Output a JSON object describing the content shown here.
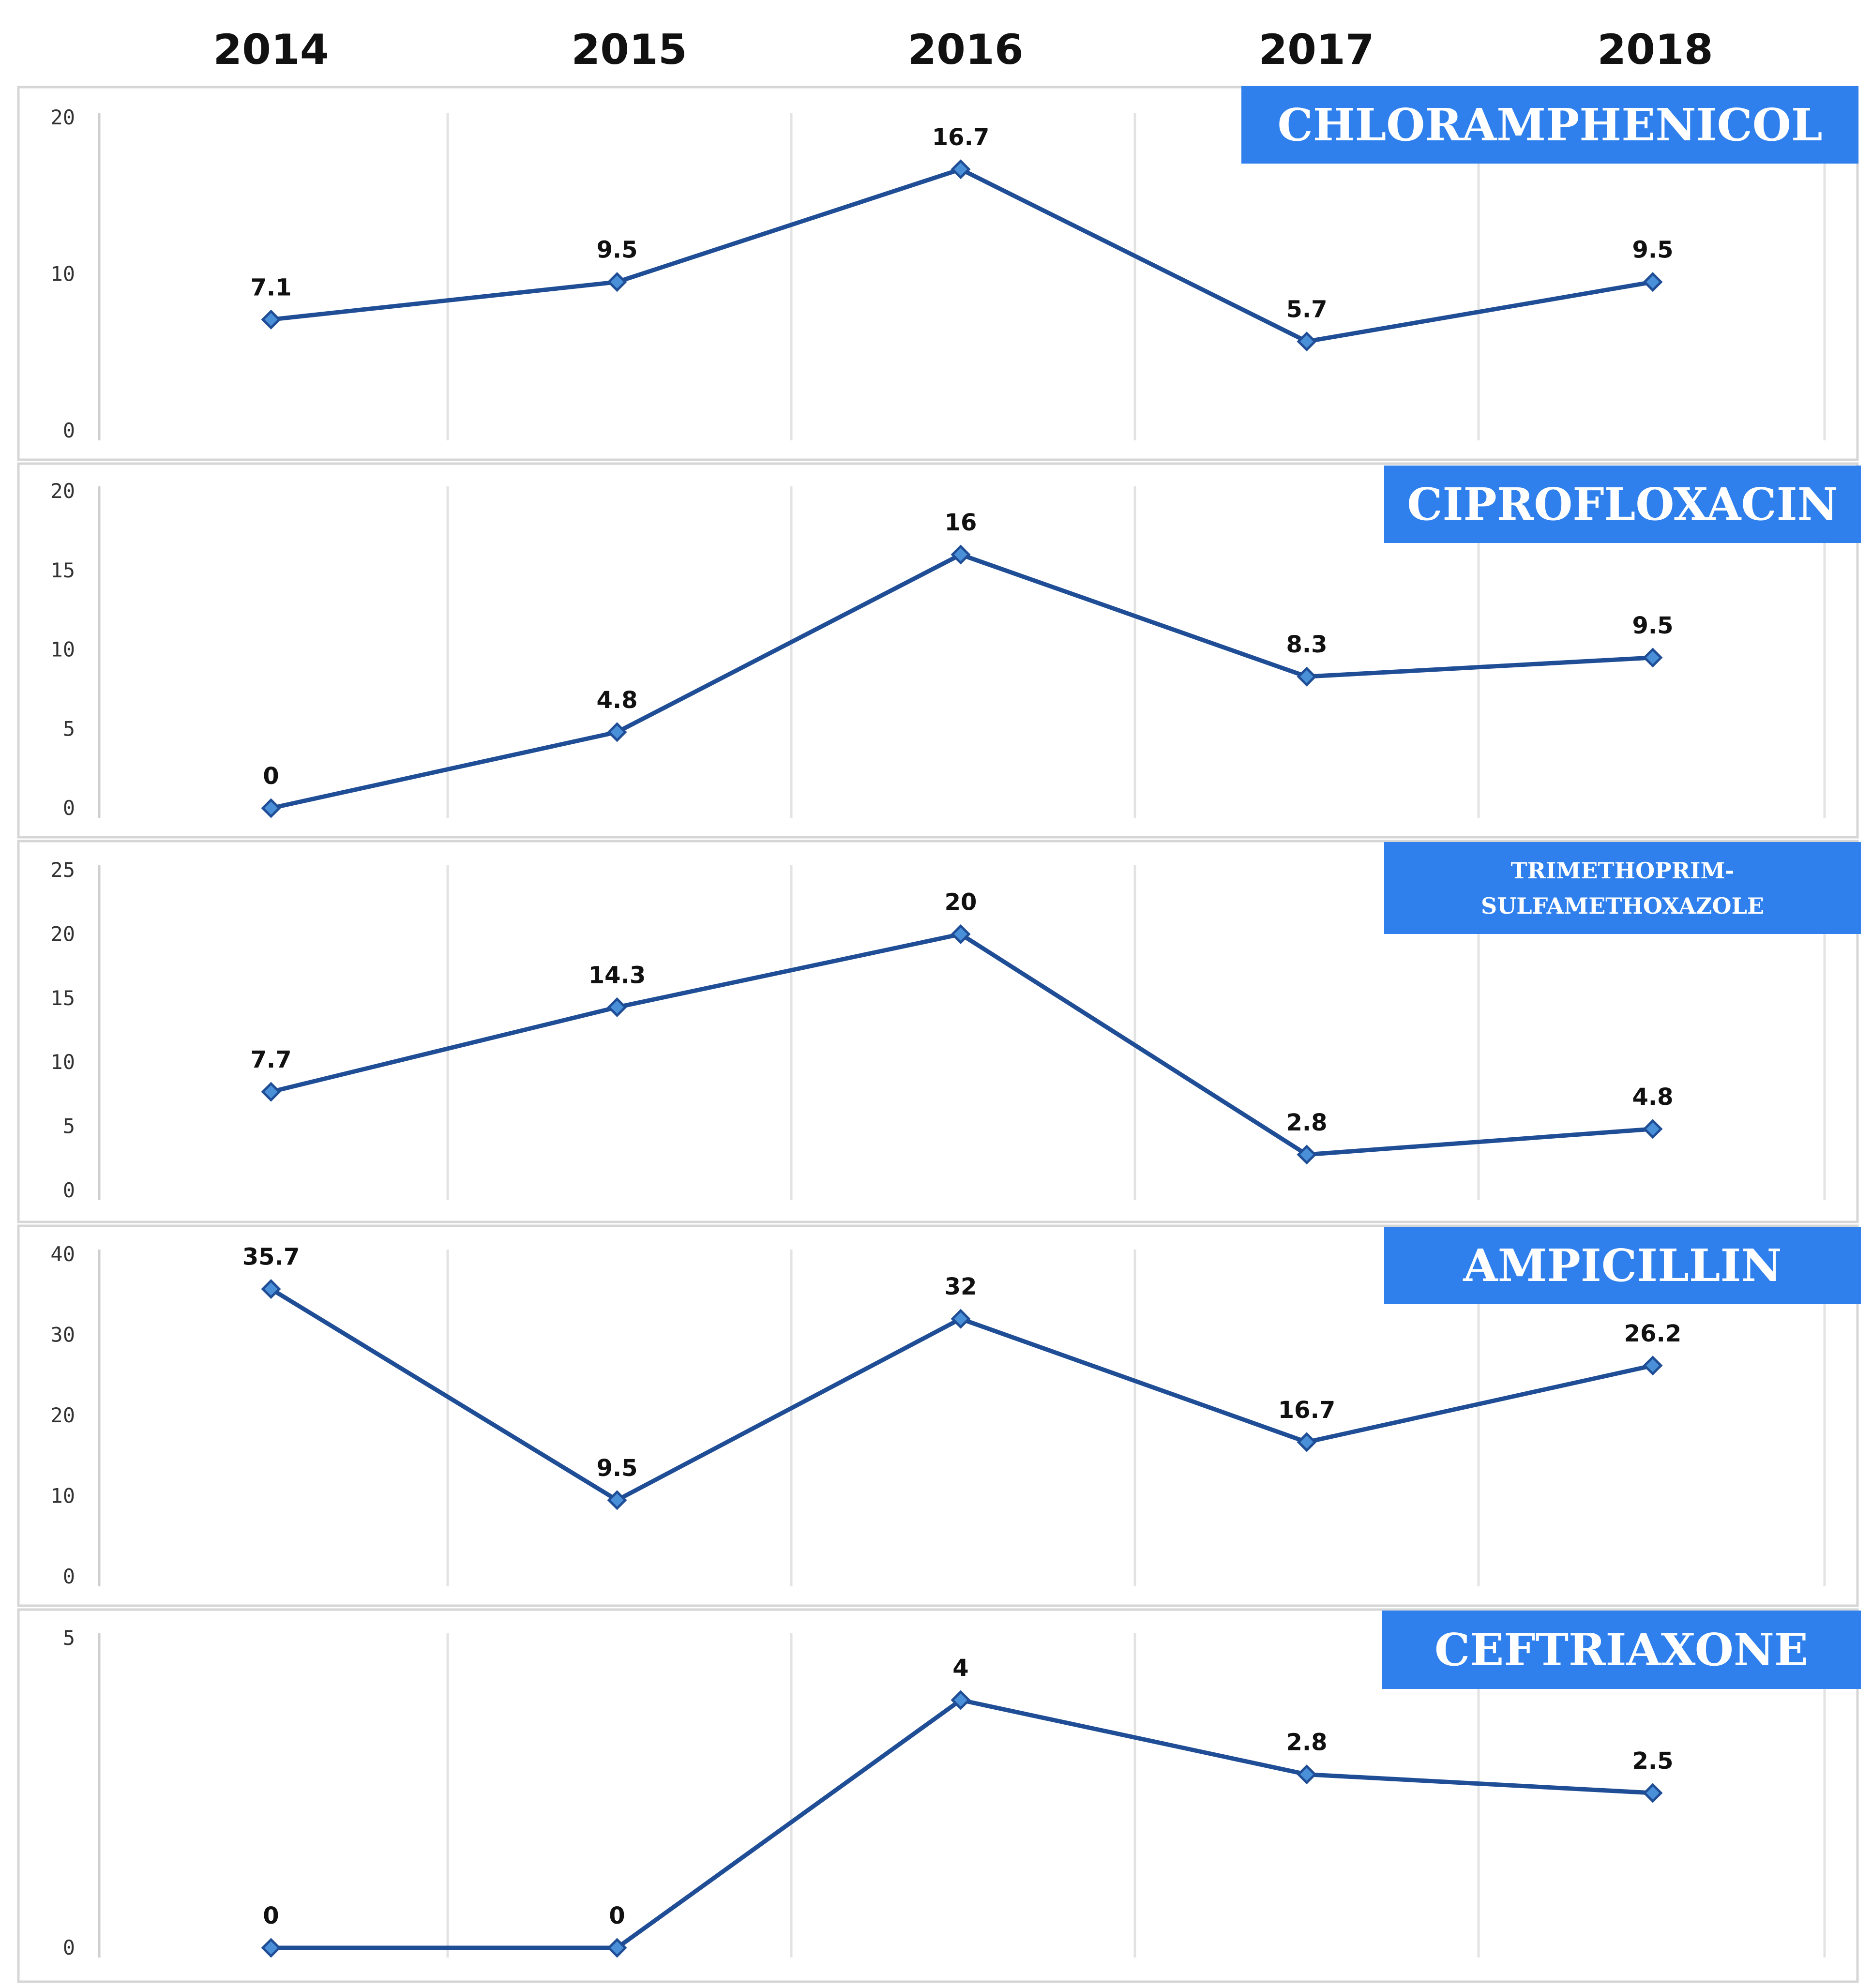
{
  "chart_data": {
    "type": "line",
    "categories": [
      "2014",
      "2015",
      "2016",
      "2017",
      "2018"
    ],
    "accent_color": "#2f80ed",
    "line_color": "#1f4e96",
    "marker_fill": "#4a90d9",
    "panels": [
      {
        "title": "CHLORAMPHENICOL",
        "yticks": [
          0,
          10,
          20
        ],
        "ylim": [
          0,
          20
        ],
        "values": [
          7.1,
          9.5,
          16.7,
          5.7,
          9.5
        ],
        "labels": [
          "7.1",
          "9.5",
          "16.7",
          "5.7",
          "9.5"
        ]
      },
      {
        "title": "CIPROFLOXACIN",
        "yticks": [
          0,
          5,
          10,
          15,
          20
        ],
        "ylim": [
          0,
          20
        ],
        "values": [
          0,
          4.8,
          16,
          8.3,
          9.5
        ],
        "labels": [
          "0",
          "4.8",
          "16",
          "8.3",
          "9.5"
        ]
      },
      {
        "title": "TRIMETHOPRIM-",
        "title2": "SULFAMETHOXAZOLE",
        "yticks": [
          0,
          5,
          10,
          15,
          20,
          25
        ],
        "ylim": [
          0,
          25
        ],
        "values": [
          7.7,
          14.3,
          20,
          2.8,
          4.8
        ],
        "labels": [
          "7.7",
          "14.3",
          "20",
          "2.8",
          "4.8"
        ]
      },
      {
        "title": "AMPICILLIN",
        "yticks": [
          0,
          10,
          20,
          30,
          40
        ],
        "ylim": [
          0,
          40
        ],
        "values": [
          35.7,
          9.5,
          32,
          16.7,
          26.2
        ],
        "labels": [
          "35.7",
          "9.5",
          "32",
          "16.7",
          "26.2"
        ]
      },
      {
        "title": "CEFTRIAXONE",
        "yticks": [
          0,
          5
        ],
        "ylim": [
          0,
          5
        ],
        "values": [
          0,
          0,
          4,
          2.8,
          2.5
        ],
        "labels": [
          "0",
          "0",
          "4",
          "2.8",
          "2.5"
        ]
      }
    ]
  }
}
